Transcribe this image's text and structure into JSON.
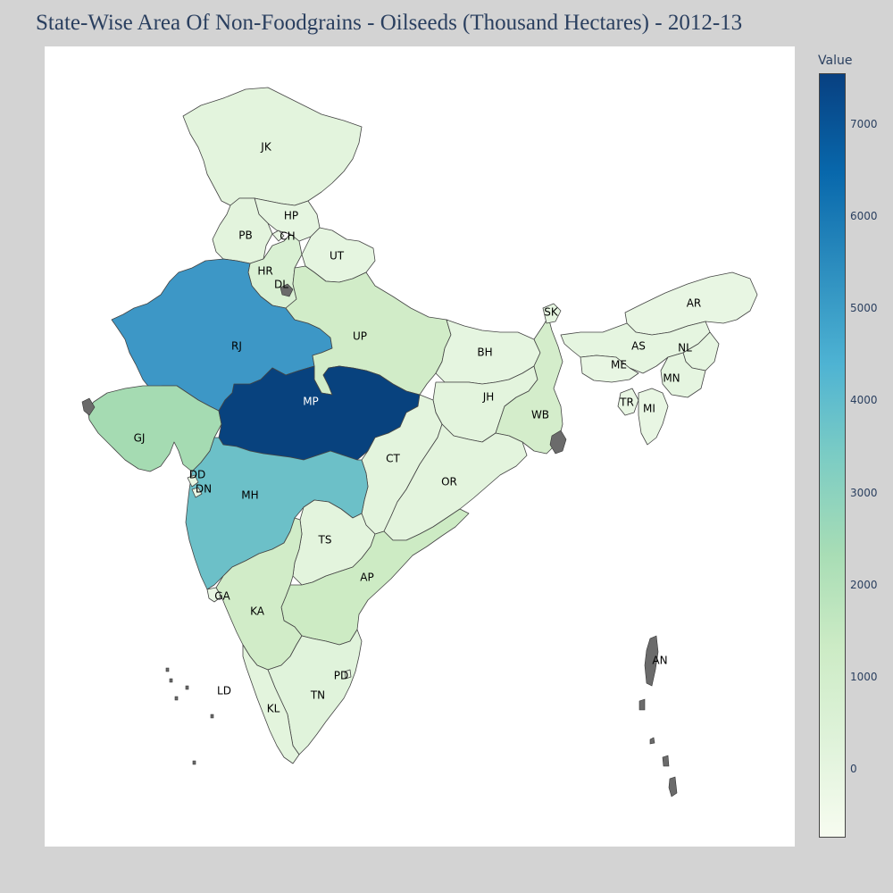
{
  "title": "State-Wise Area Of Non-Foodgrains - Oilseeds (Thousand Hectares) - 2012-13",
  "colorbar": {
    "title": "Value",
    "ticks": [
      "7000",
      "6000",
      "5000",
      "4000",
      "3000",
      "2000",
      "1000",
      "0"
    ],
    "colorscale": [
      "#f7fcf0",
      "#e0f3db",
      "#ccebc5",
      "#a8ddb5",
      "#7bccc4",
      "#4eb3d3",
      "#2b8cbe",
      "#0868ac",
      "#084081"
    ]
  },
  "map": {
    "labels": {
      "JK": "JK",
      "HP": "HP",
      "PB": "PB",
      "CH": "CH",
      "UT": "UT",
      "HR": "HR",
      "DL": "DL",
      "RJ": "RJ",
      "UP": "UP",
      "BH": "BH",
      "SK": "SK",
      "AR": "AR",
      "AS": "AS",
      "NL": "NL",
      "ME": "ME",
      "MN": "MN",
      "TR": "TR",
      "MI": "MI",
      "WB": "WB",
      "JH": "JH",
      "GJ": "GJ",
      "MP": "MP",
      "CT": "CT",
      "OR": "OR",
      "DD": "DD",
      "DN": "DN",
      "MH": "MH",
      "TS": "TS",
      "AP": "AP",
      "GA": "GA",
      "KA": "KA",
      "PD": "PD",
      "LD": "LD",
      "TN": "TN",
      "KL": "KL",
      "AN": "AN"
    },
    "fill_colors": {
      "JK": "#e3f4dd",
      "HP": "#e5f5e0",
      "PB": "#e3f4dd",
      "CH": "#e8f6e3",
      "HR": "#d9f0d3",
      "UT": "#e5f5e0",
      "DL": "#6b6b6b",
      "RJ": "#3d97c6",
      "UP": "#d1ecc8",
      "BH": "#e5f5e0",
      "SK": "#e5f5e0",
      "AR": "#e8f6e3",
      "AS": "#e5f5e0",
      "NL": "#e5f5e0",
      "ME": "#e8f6e3",
      "MN": "#e5f5e0",
      "TR": "#e8f6e3",
      "MI": "#e8f6e3",
      "WB": "#d4edcb",
      "JH": "#e3f4dd",
      "GJ": "#a5dbb2",
      "MP": "#08427e",
      "CT": "#e3f4dd",
      "OR": "#e3f4dd",
      "DD": "#e8f6e3",
      "DN": "#e8f6e3",
      "MH": "#6cc0c8",
      "TS": "#e3f4dd",
      "AP": "#cdebc4",
      "GA": "#e8f6e3",
      "KA": "#d1ecc8",
      "TN": "#e0f3db",
      "KL": "#e3f4dd",
      "PD": "#e8f6e3"
    }
  }
}
